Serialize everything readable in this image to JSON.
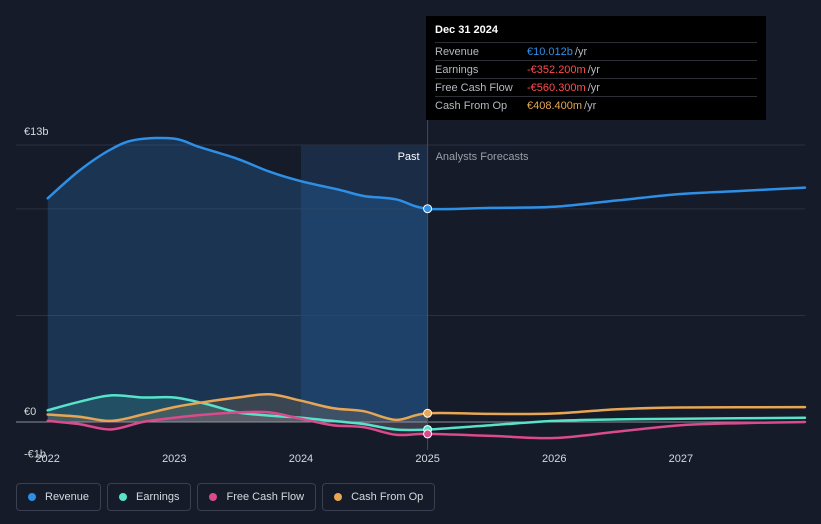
{
  "chart_data": {
    "type": "line",
    "y_tick_labels": [
      "€13b",
      "€0",
      "-€1b"
    ],
    "ylim": [
      -1,
      13
    ],
    "x_tick_labels": [
      "2022",
      "2023",
      "2024",
      "2025",
      "2026",
      "2027"
    ],
    "xlim": [
      2021.75,
      2027.98
    ],
    "divider_x": 2025.0,
    "past_label": "Past",
    "forecast_label": "Analysts Forecasts",
    "series": [
      {
        "name": "Revenue",
        "color": "#2e8fe6",
        "points": [
          [
            2022.0,
            10.5
          ],
          [
            2022.25,
            11.8
          ],
          [
            2022.5,
            12.8
          ],
          [
            2022.7,
            13.25
          ],
          [
            2023.0,
            13.3
          ],
          [
            2023.2,
            12.9
          ],
          [
            2023.5,
            12.35
          ],
          [
            2023.75,
            11.75
          ],
          [
            2024.0,
            11.3
          ],
          [
            2024.3,
            10.9
          ],
          [
            2024.5,
            10.6
          ],
          [
            2024.75,
            10.45
          ],
          [
            2025.0,
            10.01
          ],
          [
            2025.5,
            10.05
          ],
          [
            2026.0,
            10.1
          ],
          [
            2026.5,
            10.4
          ],
          [
            2027.0,
            10.7
          ],
          [
            2027.5,
            10.85
          ],
          [
            2027.98,
            11.0
          ]
        ]
      },
      {
        "name": "Earnings",
        "color": "#57e3c9",
        "points": [
          [
            2022.0,
            0.55
          ],
          [
            2022.25,
            0.95
          ],
          [
            2022.5,
            1.25
          ],
          [
            2022.75,
            1.15
          ],
          [
            2023.0,
            1.15
          ],
          [
            2023.25,
            0.85
          ],
          [
            2023.5,
            0.45
          ],
          [
            2023.75,
            0.3
          ],
          [
            2024.0,
            0.2
          ],
          [
            2024.25,
            0.05
          ],
          [
            2024.5,
            -0.1
          ],
          [
            2024.75,
            -0.35
          ],
          [
            2025.0,
            -0.35
          ],
          [
            2025.5,
            -0.15
          ],
          [
            2026.0,
            0.05
          ],
          [
            2026.5,
            0.12
          ],
          [
            2027.0,
            0.15
          ],
          [
            2027.98,
            0.2
          ]
        ]
      },
      {
        "name": "Free Cash Flow",
        "color": "#d94b8c",
        "points": [
          [
            2022.0,
            0.05
          ],
          [
            2022.25,
            -0.1
          ],
          [
            2022.5,
            -0.35
          ],
          [
            2022.75,
            0.0
          ],
          [
            2023.0,
            0.2
          ],
          [
            2023.25,
            0.35
          ],
          [
            2023.5,
            0.45
          ],
          [
            2023.75,
            0.45
          ],
          [
            2024.0,
            0.15
          ],
          [
            2024.25,
            -0.15
          ],
          [
            2024.5,
            -0.25
          ],
          [
            2024.75,
            -0.6
          ],
          [
            2025.0,
            -0.56
          ],
          [
            2025.5,
            -0.65
          ],
          [
            2026.0,
            -0.75
          ],
          [
            2026.5,
            -0.45
          ],
          [
            2027.0,
            -0.15
          ],
          [
            2027.5,
            -0.05
          ],
          [
            2027.98,
            0.0
          ]
        ]
      },
      {
        "name": "Cash From Op",
        "color": "#e6a654",
        "points": [
          [
            2022.0,
            0.35
          ],
          [
            2022.25,
            0.25
          ],
          [
            2022.5,
            0.05
          ],
          [
            2022.75,
            0.35
          ],
          [
            2023.0,
            0.7
          ],
          [
            2023.25,
            0.95
          ],
          [
            2023.5,
            1.15
          ],
          [
            2023.75,
            1.3
          ],
          [
            2024.0,
            1.0
          ],
          [
            2024.25,
            0.65
          ],
          [
            2024.5,
            0.5
          ],
          [
            2024.75,
            0.1
          ],
          [
            2025.0,
            0.41
          ],
          [
            2025.5,
            0.38
          ],
          [
            2026.0,
            0.4
          ],
          [
            2026.5,
            0.6
          ],
          [
            2027.0,
            0.68
          ],
          [
            2027.98,
            0.7
          ]
        ]
      }
    ],
    "markers_x": 2025.0
  },
  "tooltip": {
    "date": "Dec 31 2024",
    "rows": [
      {
        "label": "Revenue",
        "value": "€10.012b",
        "unit": "/yr",
        "color": "#2e8fe6"
      },
      {
        "label": "Earnings",
        "value": "-€352.200m",
        "unit": "/yr",
        "color": "#ff4d4d"
      },
      {
        "label": "Free Cash Flow",
        "value": "-€560.300m",
        "unit": "/yr",
        "color": "#ff4d4d"
      },
      {
        "label": "Cash From Op",
        "value": "€408.400m",
        "unit": "/yr",
        "color": "#e6a654"
      }
    ]
  },
  "legend": [
    {
      "label": "Revenue",
      "color": "#2e8fe6"
    },
    {
      "label": "Earnings",
      "color": "#57e3c9"
    },
    {
      "label": "Free Cash Flow",
      "color": "#d94b8c"
    },
    {
      "label": "Cash From Op",
      "color": "#e6a654"
    }
  ]
}
